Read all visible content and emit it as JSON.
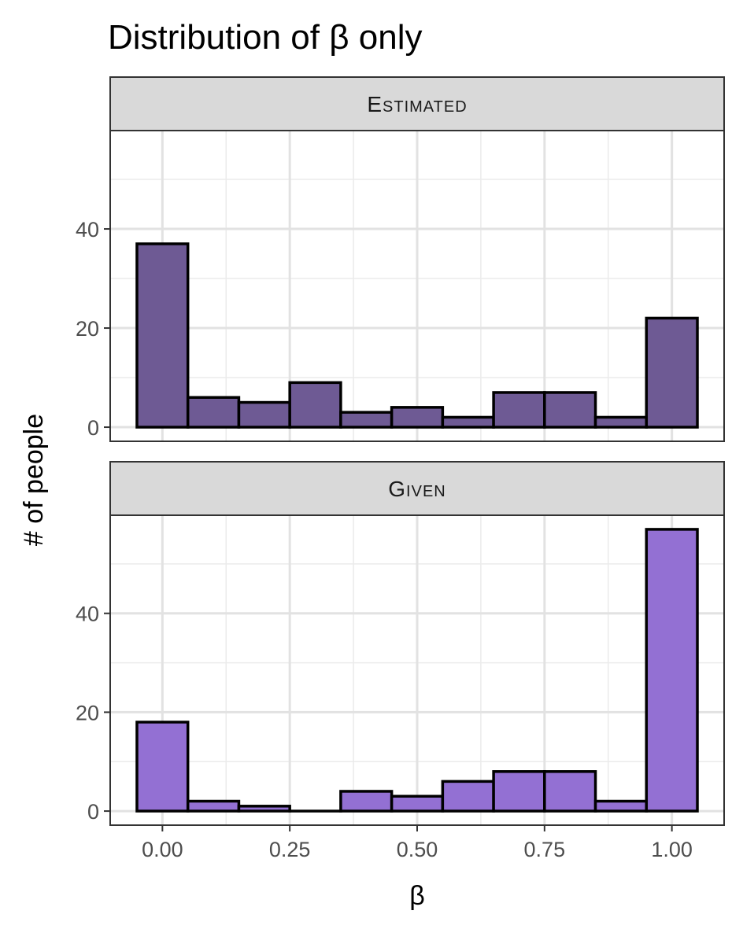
{
  "chart_data": {
    "type": "bar",
    "title": "Distribution of β only",
    "xlabel": "β",
    "ylabel": "# of people",
    "x_ticks": [
      "0.00",
      "0.25",
      "0.50",
      "0.75",
      "1.00"
    ],
    "x_tick_values": [
      0,
      0.25,
      0.5,
      0.75,
      1.0
    ],
    "xlim": [
      -0.1025,
      1.1025
    ],
    "bin_width": 0.1,
    "bin_centers": [
      0.0,
      0.1,
      0.2,
      0.3,
      0.4,
      0.5,
      0.6,
      0.7,
      0.8,
      0.9,
      1.0
    ],
    "grid": true,
    "panels": [
      {
        "name": "Estimated",
        "color": "#6e5a94",
        "ylim": [
          -2.85,
          59.85
        ],
        "y_ticks": [
          "0",
          "20",
          "40"
        ],
        "y_tick_values": [
          0,
          20,
          40
        ],
        "values": [
          37,
          6,
          5,
          9,
          3,
          4,
          2,
          7,
          7,
          2,
          22
        ]
      },
      {
        "name": "Given",
        "color": "#9370d3",
        "ylim": [
          -2.85,
          59.85
        ],
        "y_ticks": [
          "0",
          "20",
          "40"
        ],
        "y_tick_values": [
          0,
          20,
          40
        ],
        "values": [
          18,
          2,
          1,
          0,
          4,
          3,
          6,
          8,
          8,
          2,
          57
        ]
      }
    ]
  }
}
